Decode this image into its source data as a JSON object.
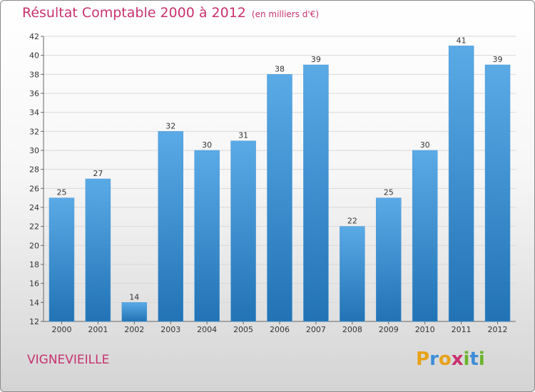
{
  "title": "Résultat Comptable 2000 à 2012",
  "subtitle": "(en milliers d'€)",
  "location": "VIGNEVIEILLE",
  "logo": {
    "letters": [
      "P",
      "r",
      "o",
      "x",
      "i",
      "t",
      "i"
    ],
    "colors": [
      "#e8a21a",
      "#3d8ed6",
      "#e8a21a",
      "#c8316e",
      "#6ab42d",
      "#3d8ed6",
      "#6ab42d"
    ]
  },
  "colors": {
    "bar_light": "#5aaae6",
    "bar_dark": "#2273b5",
    "title": "#c8316e"
  },
  "chart_data": {
    "type": "bar",
    "title": "Résultat Comptable 2000 à 2012",
    "xlabel": "",
    "ylabel": "",
    "categories": [
      "2000",
      "2001",
      "2002",
      "2003",
      "2004",
      "2005",
      "2006",
      "2007",
      "2008",
      "2009",
      "2010",
      "2011",
      "2012"
    ],
    "values": [
      25,
      27,
      14,
      32,
      30,
      31,
      38,
      39,
      22,
      25,
      30,
      41,
      39
    ],
    "ylim": [
      12,
      42
    ],
    "yticks": [
      12,
      14,
      16,
      18,
      20,
      22,
      24,
      26,
      28,
      30,
      32,
      34,
      36,
      38,
      40,
      42
    ],
    "grid": true
  }
}
